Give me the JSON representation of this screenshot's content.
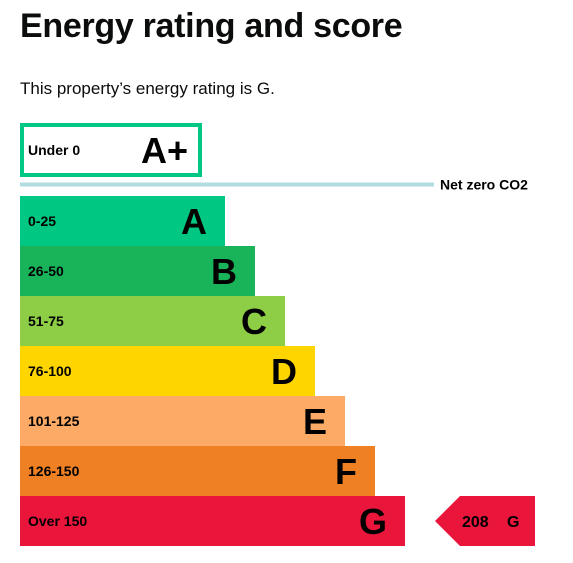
{
  "page": {
    "title": "Energy rating and score",
    "summary": "This property’s energy rating is G."
  },
  "chart_data": {
    "type": "bar",
    "title": "",
    "categories": [
      "A+",
      "A",
      "B",
      "C",
      "D",
      "E",
      "F",
      "G"
    ],
    "bands": [
      {
        "letter": "A+",
        "range": "Under 0",
        "rank": 0,
        "color": "#ffffff",
        "border": "#00c781"
      },
      {
        "letter": "A",
        "range": "0-25",
        "rank": 1,
        "color": "#00c781"
      },
      {
        "letter": "B",
        "range": "26-50",
        "rank": 2,
        "color": "#19b459"
      },
      {
        "letter": "C",
        "range": "51-75",
        "rank": 3,
        "color": "#8dce46"
      },
      {
        "letter": "D",
        "range": "76-100",
        "rank": 4,
        "color": "#ffd500"
      },
      {
        "letter": "E",
        "range": "101-125",
        "rank": 5,
        "color": "#fcaa65"
      },
      {
        "letter": "F",
        "range": "126-150",
        "rank": 6,
        "color": "#ef8023"
      },
      {
        "letter": "G",
        "range": "Over 150",
        "rank": 7,
        "color": "#e9153b"
      }
    ],
    "net_zero_label": "Net zero CO2",
    "net_zero_line_color": "#b1dde0",
    "current": {
      "score": "208",
      "letter": "G",
      "band_index": 7,
      "color": "#e9153b"
    }
  }
}
